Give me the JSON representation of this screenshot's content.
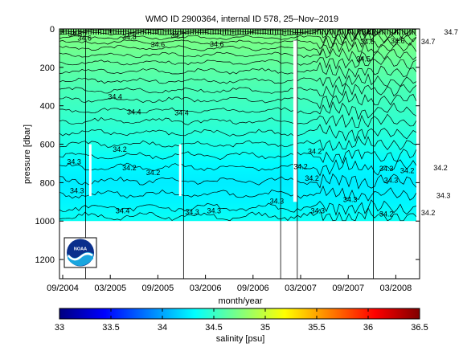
{
  "chart_data": {
    "type": "heatmap",
    "title": "WMO ID 2900364, internal ID 578, 25–Nov–2019",
    "xlabel": "month/year",
    "ylabel": "pressure [dbar]",
    "x_tick_labels": [
      "09/2004",
      "03/2005",
      "09/2005",
      "03/2006",
      "09/2006",
      "03/2007",
      "09/2007",
      "03/2008"
    ],
    "y_ticks": [
      0,
      200,
      400,
      600,
      800,
      1000,
      1200
    ],
    "ylim": [
      0,
      1300
    ],
    "y_reversed": true,
    "data_max_pressure": 1000,
    "colorbar": {
      "label": "salinity [psu]",
      "range": [
        33,
        36.5
      ],
      "ticks": [
        "33",
        "33.5",
        "34",
        "34.5",
        "35",
        "35.5",
        "36",
        "36.5"
      ],
      "colormap": "jet"
    },
    "salinity_profile": [
      {
        "pressure": 0,
        "salinity": 34.75
      },
      {
        "pressure": 100,
        "salinity": 34.7
      },
      {
        "pressure": 200,
        "salinity": 34.63
      },
      {
        "pressure": 300,
        "salinity": 34.57
      },
      {
        "pressure": 400,
        "salinity": 34.52
      },
      {
        "pressure": 500,
        "salinity": 34.47
      },
      {
        "pressure": 600,
        "salinity": 34.4
      },
      {
        "pressure": 700,
        "salinity": 34.3
      },
      {
        "pressure": 800,
        "salinity": 34.25
      },
      {
        "pressure": 900,
        "salinity": 34.28
      },
      {
        "pressure": 1000,
        "salinity": 34.35
      }
    ],
    "contour_labels": [
      {
        "text": "34.5",
        "x": 0.13,
        "y": 40
      },
      {
        "text": "34.6",
        "x": 0.23,
        "y": 60
      },
      {
        "text": "34.8",
        "x": 0.7,
        "y": 55
      },
      {
        "text": "34.7",
        "x": 1.21,
        "y": 45
      },
      {
        "text": "34.6",
        "x": 1.0,
        "y": 95
      },
      {
        "text": "34.6",
        "x": 1.62,
        "y": 92
      },
      {
        "text": "34.7",
        "x": 3.22,
        "y": 30
      },
      {
        "text": "34.5",
        "x": 3.16,
        "y": 170
      },
      {
        "text": "34.6",
        "x": 3.2,
        "y": 80
      },
      {
        "text": "34.6",
        "x": 3.52,
        "y": 75
      },
      {
        "text": "34.7",
        "x": 3.84,
        "y": 80
      },
      {
        "text": "34.7",
        "x": 4.08,
        "y": 30
      },
      {
        "text": "34.4",
        "x": 0.55,
        "y": 365
      },
      {
        "text": "34.4",
        "x": 0.75,
        "y": 445
      },
      {
        "text": "34.4",
        "x": 1.25,
        "y": 450
      },
      {
        "text": "34.2",
        "x": 0.6,
        "y": 640
      },
      {
        "text": "34.3",
        "x": 0.12,
        "y": 705
      },
      {
        "text": "34.2",
        "x": 0.7,
        "y": 735
      },
      {
        "text": "34.2",
        "x": 0.95,
        "y": 760
      },
      {
        "text": "34.3",
        "x": 0.15,
        "y": 855
      },
      {
        "text": "34.4",
        "x": 0.63,
        "y": 960
      },
      {
        "text": "34.3",
        "x": 1.36,
        "y": 965
      },
      {
        "text": "34.3",
        "x": 1.59,
        "y": 960
      },
      {
        "text": "34.3",
        "x": 2.25,
        "y": 910
      },
      {
        "text": "34.2",
        "x": 2.5,
        "y": 730
      },
      {
        "text": "34.2",
        "x": 2.65,
        "y": 650
      },
      {
        "text": "34.2",
        "x": 2.62,
        "y": 790
      },
      {
        "text": "34.3",
        "x": 2.68,
        "y": 960
      },
      {
        "text": "34.3",
        "x": 3.02,
        "y": 900
      },
      {
        "text": "34.2",
        "x": 3.4,
        "y": 975
      },
      {
        "text": "34.2",
        "x": 3.84,
        "y": 970
      },
      {
        "text": "34.3",
        "x": 3.4,
        "y": 740
      },
      {
        "text": "34.3",
        "x": 3.45,
        "y": 800
      },
      {
        "text": "34.2",
        "x": 3.62,
        "y": 750
      },
      {
        "text": "34.2",
        "x": 3.97,
        "y": 735
      },
      {
        "text": "34.3",
        "x": 4.0,
        "y": 880
      }
    ],
    "profile_gaps": [
      0.58,
      2.47
    ]
  }
}
